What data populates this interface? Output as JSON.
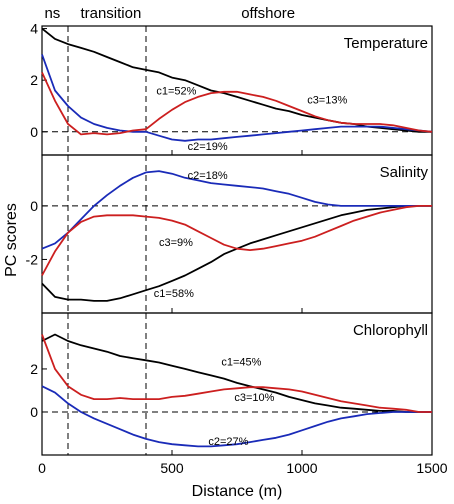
{
  "chart_data": {
    "type": "line",
    "xlabel": "Distance (m)",
    "ylabel": "PC scores",
    "xlim": [
      0,
      1500
    ],
    "x_ticks": [
      "0",
      "500",
      "1000",
      "1500"
    ],
    "region_labels": [
      {
        "text": "ns",
        "x_center": 40
      },
      {
        "text": "transition",
        "x_center": 265
      },
      {
        "text": "offshore",
        "x_center": 870
      }
    ],
    "region_boundaries": [
      100,
      400
    ],
    "colors": {
      "c1": "#000000",
      "c2": "#1a2bb8",
      "c3": "#cc1f1f",
      "reference": "#000000"
    },
    "panels": [
      {
        "title": "Temperature",
        "ylim": [
          -0.9,
          4.1
        ],
        "y_ticks": [
          {
            "value": 0,
            "label": "0"
          },
          {
            "value": 2,
            "label": "2"
          },
          {
            "value": 4,
            "label": "4"
          }
        ],
        "series": [
          {
            "name": "c1=52%",
            "color": "#000000",
            "label_at": [
              440,
              1.6
            ],
            "x": [
              0,
              50,
              100,
              150,
              200,
              250,
              300,
              350,
              400,
              450,
              500,
              550,
              600,
              650,
              700,
              750,
              800,
              850,
              900,
              950,
              1000,
              1050,
              1100,
              1150,
              1200,
              1250,
              1300,
              1350,
              1400,
              1450,
              1500
            ],
            "y": [
              4.0,
              3.6,
              3.4,
              3.25,
              3.1,
              2.9,
              2.7,
              2.5,
              2.4,
              2.3,
              2.1,
              2.0,
              1.8,
              1.6,
              1.5,
              1.35,
              1.2,
              1.05,
              0.9,
              0.8,
              0.65,
              0.55,
              0.45,
              0.35,
              0.3,
              0.2,
              0.15,
              0.1,
              0.05,
              0.0,
              0.0
            ]
          },
          {
            "name": "c2=19%",
            "color": "#1a2bb8",
            "label_at": [
              560,
              -0.55
            ],
            "x": [
              0,
              50,
              100,
              150,
              200,
              250,
              300,
              350,
              400,
              450,
              500,
              550,
              600,
              650,
              700,
              750,
              800,
              850,
              900,
              950,
              1000,
              1050,
              1100,
              1150,
              1200,
              1250,
              1300,
              1350,
              1400,
              1450,
              1500
            ],
            "y": [
              3.0,
              1.6,
              1.0,
              0.55,
              0.3,
              0.15,
              0.05,
              0.0,
              0.0,
              -0.15,
              -0.3,
              -0.35,
              -0.3,
              -0.3,
              -0.25,
              -0.2,
              -0.15,
              -0.1,
              -0.05,
              0.0,
              0.05,
              0.1,
              0.15,
              0.2,
              0.2,
              0.2,
              0.2,
              0.15,
              0.1,
              0.05,
              0.0
            ]
          },
          {
            "name": "c3=13%",
            "color": "#cc1f1f",
            "label_at": [
              1020,
              1.25
            ],
            "x": [
              0,
              50,
              100,
              150,
              200,
              250,
              300,
              350,
              400,
              450,
              500,
              550,
              600,
              650,
              700,
              750,
              800,
              850,
              900,
              950,
              1000,
              1050,
              1100,
              1150,
              1200,
              1250,
              1300,
              1350,
              1400,
              1450,
              1500
            ],
            "y": [
              2.3,
              1.2,
              0.3,
              -0.1,
              -0.05,
              -0.1,
              -0.05,
              0.05,
              0.1,
              0.5,
              0.85,
              1.15,
              1.35,
              1.5,
              1.55,
              1.55,
              1.45,
              1.35,
              1.2,
              1.0,
              0.8,
              0.6,
              0.45,
              0.35,
              0.3,
              0.3,
              0.3,
              0.25,
              0.15,
              0.05,
              0.0
            ]
          }
        ]
      },
      {
        "title": "Salinity",
        "ylim": [
          -4.0,
          1.9
        ],
        "y_ticks": [
          {
            "value": 0,
            "label": "0"
          },
          {
            "value": -2,
            "label": "-2"
          }
        ],
        "series": [
          {
            "name": "c1=58%",
            "color": "#000000",
            "label_at": [
              430,
              -3.25
            ],
            "x": [
              0,
              50,
              100,
              150,
              200,
              250,
              300,
              350,
              400,
              450,
              500,
              550,
              600,
              650,
              700,
              750,
              800,
              850,
              900,
              950,
              1000,
              1050,
              1100,
              1150,
              1200,
              1250,
              1300,
              1350,
              1400,
              1450,
              1500
            ],
            "y": [
              -2.9,
              -3.4,
              -3.5,
              -3.5,
              -3.55,
              -3.55,
              -3.45,
              -3.3,
              -3.15,
              -3.0,
              -2.8,
              -2.6,
              -2.35,
              -2.1,
              -1.8,
              -1.6,
              -1.4,
              -1.25,
              -1.1,
              -0.95,
              -0.8,
              -0.65,
              -0.5,
              -0.35,
              -0.25,
              -0.15,
              -0.1,
              -0.05,
              0.0,
              0.0,
              0.0
            ]
          },
          {
            "name": "c2=18%",
            "color": "#1a2bb8",
            "label_at": [
              560,
              1.15
            ],
            "x": [
              0,
              50,
              100,
              150,
              200,
              250,
              300,
              350,
              400,
              450,
              500,
              550,
              600,
              650,
              700,
              750,
              800,
              850,
              900,
              950,
              1000,
              1050,
              1100,
              1150,
              1200,
              1250,
              1300,
              1350,
              1400,
              1450,
              1500
            ],
            "y": [
              -1.6,
              -1.4,
              -1.0,
              -0.5,
              0.0,
              0.4,
              0.75,
              1.05,
              1.25,
              1.3,
              1.2,
              1.05,
              0.95,
              0.85,
              0.8,
              0.75,
              0.7,
              0.65,
              0.55,
              0.45,
              0.3,
              0.15,
              0.05,
              0.0,
              0.0,
              0.0,
              0.0,
              0.0,
              0.0,
              0.0,
              0.0
            ]
          },
          {
            "name": "c3=9%",
            "color": "#cc1f1f",
            "label_at": [
              450,
              -1.35
            ],
            "x": [
              0,
              50,
              100,
              150,
              200,
              250,
              300,
              350,
              400,
              450,
              500,
              550,
              600,
              650,
              700,
              750,
              800,
              850,
              900,
              950,
              1000,
              1050,
              1100,
              1150,
              1200,
              1250,
              1300,
              1350,
              1400,
              1450,
              1500
            ],
            "y": [
              -2.6,
              -1.7,
              -1.0,
              -0.6,
              -0.4,
              -0.35,
              -0.35,
              -0.35,
              -0.4,
              -0.45,
              -0.55,
              -0.7,
              -0.95,
              -1.2,
              -1.45,
              -1.6,
              -1.65,
              -1.6,
              -1.5,
              -1.4,
              -1.3,
              -1.15,
              -0.95,
              -0.75,
              -0.55,
              -0.4,
              -0.25,
              -0.15,
              -0.05,
              0.0,
              0.0
            ]
          }
        ]
      },
      {
        "title": "Chlorophyll",
        "ylim": [
          -2.0,
          4.6
        ],
        "y_ticks": [
          {
            "value": 0,
            "label": "0"
          },
          {
            "value": 2,
            "label": "2"
          }
        ],
        "series": [
          {
            "name": "c1=45%",
            "color": "#000000",
            "label_at": [
              690,
              2.35
            ],
            "x": [
              0,
              50,
              100,
              150,
              200,
              250,
              300,
              350,
              400,
              450,
              500,
              550,
              600,
              650,
              700,
              750,
              800,
              850,
              900,
              950,
              1000,
              1050,
              1100,
              1150,
              1200,
              1250,
              1300,
              1350,
              1400,
              1450,
              1500
            ],
            "y": [
              3.3,
              3.6,
              3.3,
              3.1,
              2.95,
              2.8,
              2.6,
              2.5,
              2.4,
              2.3,
              2.15,
              2.0,
              1.85,
              1.7,
              1.55,
              1.35,
              1.2,
              1.05,
              0.9,
              0.7,
              0.55,
              0.4,
              0.3,
              0.2,
              0.15,
              0.1,
              0.05,
              0.05,
              0.0,
              0.0,
              0.0
            ]
          },
          {
            "name": "c2=27%",
            "color": "#1a2bb8",
            "label_at": [
              640,
              -1.35
            ],
            "x": [
              0,
              50,
              100,
              150,
              200,
              250,
              300,
              350,
              400,
              450,
              500,
              550,
              600,
              650,
              700,
              750,
              800,
              850,
              900,
              950,
              1000,
              1050,
              1100,
              1150,
              1200,
              1250,
              1300,
              1350,
              1400,
              1450,
              1500
            ],
            "y": [
              1.2,
              0.9,
              0.4,
              0.0,
              -0.3,
              -0.55,
              -0.8,
              -1.05,
              -1.25,
              -1.4,
              -1.5,
              -1.55,
              -1.6,
              -1.6,
              -1.55,
              -1.5,
              -1.4,
              -1.3,
              -1.2,
              -1.05,
              -0.85,
              -0.65,
              -0.45,
              -0.3,
              -0.2,
              -0.1,
              -0.05,
              0.0,
              0.0,
              0.0,
              0.0
            ]
          },
          {
            "name": "c3=10%",
            "color": "#cc1f1f",
            "label_at": [
              740,
              0.7
            ],
            "x": [
              0,
              50,
              100,
              150,
              200,
              250,
              300,
              350,
              400,
              450,
              500,
              550,
              600,
              650,
              700,
              750,
              800,
              850,
              900,
              950,
              1000,
              1050,
              1100,
              1150,
              1200,
              1250,
              1300,
              1350,
              1400,
              1450,
              1500
            ],
            "y": [
              3.6,
              2.0,
              1.2,
              0.8,
              0.6,
              0.6,
              0.65,
              0.6,
              0.6,
              0.6,
              0.7,
              0.75,
              0.85,
              0.95,
              1.05,
              1.1,
              1.15,
              1.15,
              1.1,
              1.05,
              0.95,
              0.8,
              0.65,
              0.5,
              0.4,
              0.3,
              0.2,
              0.15,
              0.1,
              0.0,
              0.0
            ]
          }
        ]
      }
    ]
  }
}
